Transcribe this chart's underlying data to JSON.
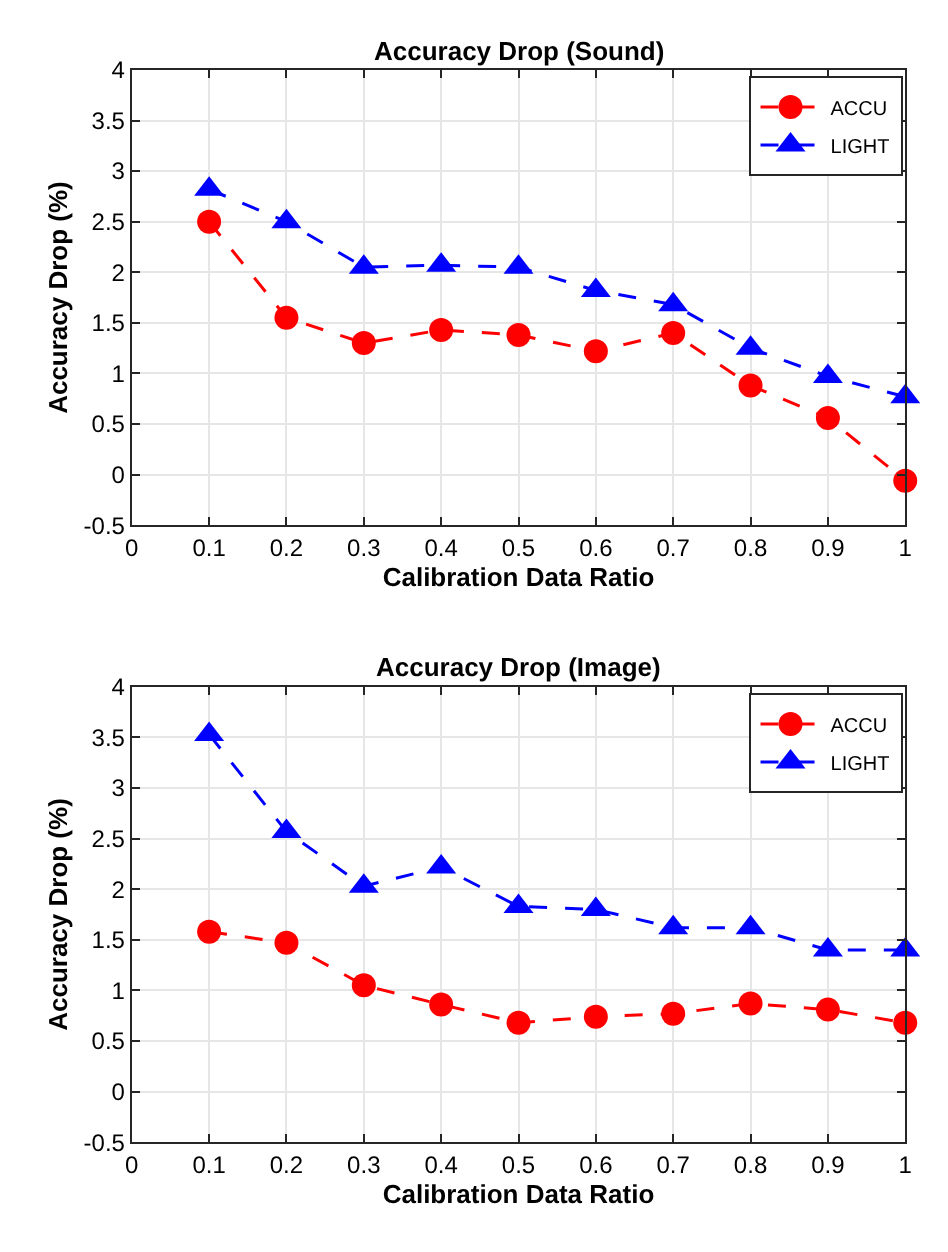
{
  "chart_data": [
    {
      "type": "line",
      "title": "Accuracy Drop (Sound)",
      "xlabel": "Calibration Data Ratio",
      "ylabel": "Accuracy Drop (%)",
      "x": [
        0.1,
        0.2,
        0.3,
        0.4,
        0.5,
        0.6,
        0.7,
        0.8,
        0.9,
        1
      ],
      "series": [
        {
          "name": "ACCU",
          "color": "#ff0000",
          "marker": "circle",
          "values": [
            2.5,
            1.55,
            1.3,
            1.43,
            1.38,
            1.22,
            1.4,
            0.88,
            0.56,
            -0.06
          ]
        },
        {
          "name": "LIGHT",
          "color": "#0000ff",
          "marker": "triangle",
          "values": [
            2.82,
            2.5,
            2.05,
            2.07,
            2.05,
            1.82,
            1.68,
            1.25,
            0.97,
            0.77
          ]
        }
      ],
      "line_style": "dashed",
      "xlim": [
        0,
        1
      ],
      "xticks": [
        0,
        0.1,
        0.2,
        0.3,
        0.4,
        0.5,
        0.6,
        0.7,
        0.8,
        0.9,
        1
      ],
      "ylim": [
        -0.5,
        4
      ],
      "yticks": [
        -0.5,
        0,
        0.5,
        1,
        1.5,
        2,
        2.5,
        3,
        3.5,
        4
      ],
      "grid": true,
      "legend": "top right"
    },
    {
      "type": "line",
      "title": "Accuracy Drop (Image)",
      "xlabel": "Calibration Data Ratio",
      "ylabel": "Accuracy Drop (%)",
      "x": [
        0.1,
        0.2,
        0.3,
        0.4,
        0.5,
        0.6,
        0.7,
        0.8,
        0.9,
        1
      ],
      "series": [
        {
          "name": "ACCU",
          "color": "#ff0000",
          "marker": "circle",
          "values": [
            1.58,
            1.47,
            1.05,
            0.86,
            0.68,
            0.74,
            0.77,
            0.87,
            0.81,
            0.68
          ]
        },
        {
          "name": "LIGHT",
          "color": "#0000ff",
          "marker": "triangle",
          "values": [
            3.53,
            2.57,
            2.03,
            2.22,
            1.83,
            1.8,
            1.62,
            1.62,
            1.4,
            1.4
          ]
        }
      ],
      "line_style": "dashed",
      "xlim": [
        0,
        1
      ],
      "xticks": [
        0,
        0.1,
        0.2,
        0.3,
        0.4,
        0.5,
        0.6,
        0.7,
        0.8,
        0.9,
        1
      ],
      "ylim": [
        -0.5,
        4
      ],
      "yticks": [
        -0.5,
        0,
        0.5,
        1,
        1.5,
        2,
        2.5,
        3,
        3.5,
        4
      ],
      "grid": true,
      "legend": "top right"
    }
  ]
}
